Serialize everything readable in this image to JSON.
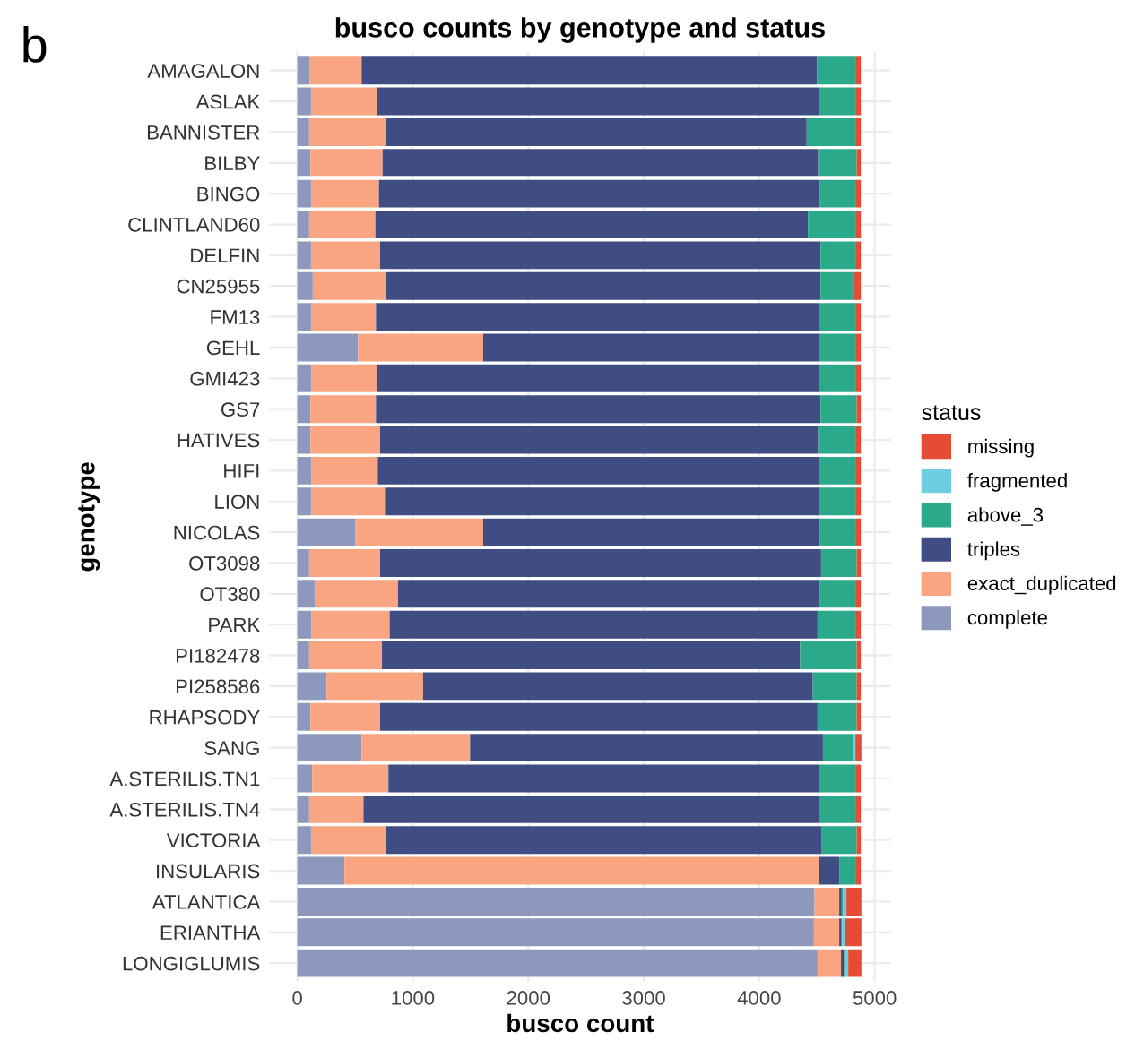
{
  "chart_data": {
    "type": "bar",
    "orientation": "horizontal",
    "stacked": true,
    "title": "busco counts by genotype and status",
    "xlabel": "busco count",
    "ylabel": "genotype",
    "legend_title": "status",
    "annotations": [
      "b"
    ],
    "categories": [
      "AMAGALON",
      "ASLAK",
      "BANNISTER",
      "BILBY",
      "BINGO",
      "CLINTLAND60",
      "DELFIN",
      "CN25955",
      "FM13",
      "GEHL",
      "GMI423",
      "GS7",
      "HATIVES",
      "HIFI",
      "LION",
      "NICOLAS",
      "OT3098",
      "OT380",
      "PARK",
      "PI182478",
      "PI258586",
      "RHAPSODY",
      "SANG",
      "A.STERILIS.TN1",
      "A.STERILIS.TN4",
      "VICTORIA",
      "INSULARIS",
      "ATLANTICA",
      "ERIANTHA",
      "LONGIGLUMIS"
    ],
    "series": [
      {
        "name": "complete",
        "color": "#8e98bd",
        "values": [
          108,
          119,
          103,
          114,
          119,
          103,
          119,
          134,
          119,
          526,
          124,
          114,
          114,
          124,
          119,
          500,
          103,
          150,
          124,
          103,
          253,
          114,
          557,
          129,
          103,
          119,
          408,
          4479,
          4474,
          4505
        ]
      },
      {
        "name": "exact_duplicated",
        "color": "#f9a582",
        "values": [
          449,
          572,
          661,
          624,
          588,
          573,
          598,
          630,
          562,
          1084,
          562,
          567,
          603,
          573,
          640,
          1110,
          614,
          722,
          676,
          630,
          836,
          603,
          939,
          660,
          470,
          645,
          4113,
          214,
          219,
          203
        ]
      },
      {
        "name": "triples",
        "color": "#3f4d82",
        "values": [
          3943,
          3830,
          3647,
          3772,
          3819,
          3746,
          3814,
          3767,
          3840,
          2911,
          3835,
          3850,
          3793,
          3819,
          3762,
          2916,
          3819,
          3654,
          3705,
          3621,
          3375,
          3788,
          3056,
          3732,
          3948,
          3778,
          172,
          21,
          15,
          26
        ]
      },
      {
        "name": "above_3",
        "color": "#2aa98b",
        "values": [
          333,
          318,
          428,
          334,
          313,
          417,
          308,
          292,
          318,
          312,
          318,
          313,
          329,
          317,
          318,
          307,
          308,
          307,
          334,
          490,
          380,
          339,
          261,
          312,
          312,
          302,
          140,
          10,
          11,
          11
        ]
      },
      {
        "name": "fragmented",
        "color": "#6ecde0",
        "values": [
          null,
          null,
          null,
          null,
          null,
          null,
          null,
          null,
          null,
          null,
          null,
          null,
          null,
          null,
          null,
          null,
          null,
          null,
          null,
          null,
          null,
          null,
          20,
          null,
          null,
          null,
          null,
          31,
          26,
          26
        ]
      },
      {
        "name": "missing",
        "color": "#e64b35",
        "values": [
          47,
          41,
          41,
          36,
          41,
          41,
          41,
          57,
          41,
          47,
          41,
          36,
          41,
          47,
          41,
          47,
          36,
          47,
          41,
          36,
          36,
          36,
          52,
          47,
          47,
          36,
          47,
          130,
          140,
          114
        ]
      }
    ],
    "xlim": [
      -245,
      5141
    ],
    "xticks": [
      0,
      1000,
      2000,
      3000,
      4000,
      5000
    ],
    "grid": true,
    "legend": "right"
  }
}
